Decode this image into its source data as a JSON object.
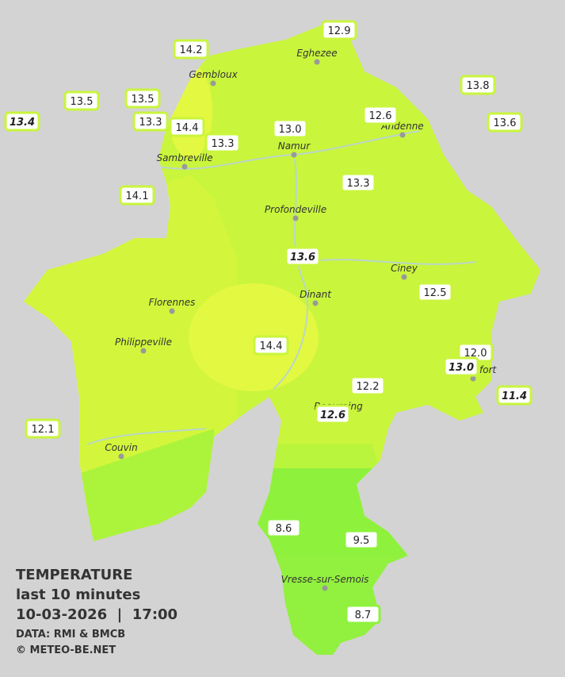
{
  "legend": {
    "title": "TEMPERATURE",
    "period": "last 10 minutes",
    "datetime": "10-03-2026  |  17:00",
    "source": "DATA: RMI & BMCB",
    "credit": "© METEO-BE.NET"
  },
  "cities": [
    "Eghezee",
    "Gembloux",
    "Andenne",
    "Namur",
    "Sambreville",
    "Profondeville",
    "Ciney",
    "Dinant",
    "Florennes",
    "Philippeville",
    "Rochefort",
    "Beauraing",
    "Couvin",
    "Vresse-sur-Semois"
  ],
  "stations": [
    "12.9",
    "14.2",
    "13.8",
    "13.5",
    "13.5",
    "13.4",
    "13.3",
    "14.4",
    "13.0",
    "12.6",
    "13.6",
    "13.3",
    "14.1",
    "13.3",
    "13.6",
    "12.5",
    "14.4",
    "12.0",
    "13.0",
    "12.2",
    "11.4",
    "12.6",
    "12.1",
    "8.6",
    "9.5",
    "8.7"
  ]
}
